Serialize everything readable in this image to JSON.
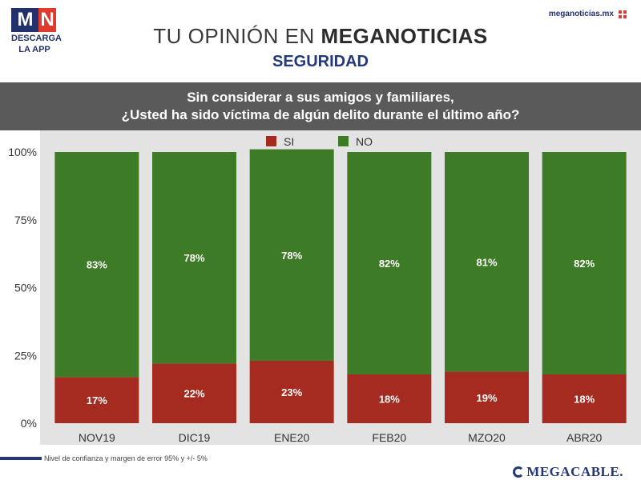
{
  "header": {
    "logo_mark_m": "M",
    "logo_mark_n": "N",
    "logo_line1": "DESCARGA",
    "logo_line2": "LA APP",
    "site": "meganoticias.mx",
    "title_light": "TU OPINIÓN EN",
    "title_bold": "MEGANOTICIAS",
    "subtitle": "SEGURIDAD"
  },
  "question": {
    "line1": "Sin considerar a sus amigos y familiares,",
    "line2": "¿Usted ha sido víctima de algún delito durante el último año?"
  },
  "footer": {
    "note": "Nivel de confianza y margen de error 95% y +/- 5%",
    "brand": "MEGACABLE."
  },
  "colors": {
    "si": "#a52a1f",
    "no": "#3e7b27",
    "label": "#ffffff",
    "axis_text": "#333333"
  },
  "chart_data": {
    "type": "bar",
    "stacked": true,
    "categories": [
      "NOV19",
      "DIC19",
      "ENE20",
      "FEB20",
      "MZO20",
      "ABR20"
    ],
    "series": [
      {
        "name": "SI",
        "values": [
          17,
          22,
          23,
          18,
          19,
          18
        ]
      },
      {
        "name": "NO",
        "values": [
          83,
          78,
          78,
          82,
          81,
          82
        ]
      }
    ],
    "ylim": [
      0,
      100
    ],
    "yticks": [
      "0%",
      "25%",
      "50%",
      "75%",
      "100%"
    ],
    "ytick_values": [
      0,
      25,
      50,
      75,
      100
    ],
    "legend": "top-center",
    "value_suffix": "%"
  }
}
